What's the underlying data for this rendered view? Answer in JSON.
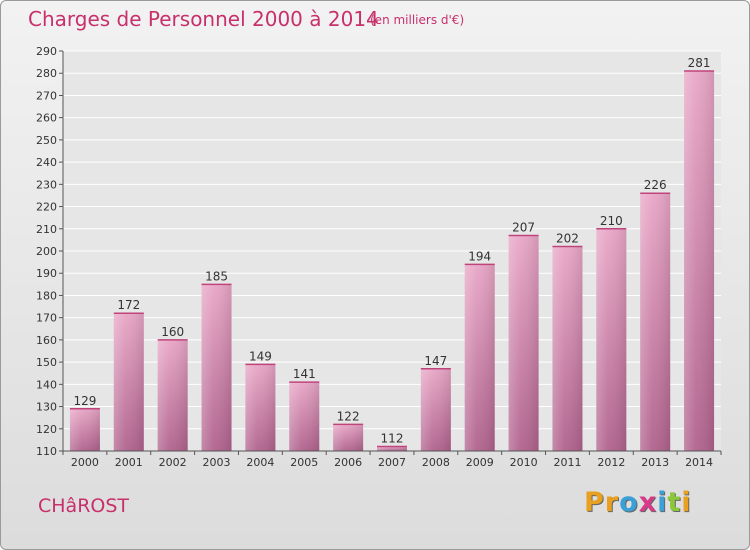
{
  "header": {
    "title": "Charges de Personnel 2000 à 2014",
    "unit": "(en milliers d'€)"
  },
  "footer": {
    "commune": "CHâROST",
    "logo_letters": [
      "P",
      "r",
      "o",
      "x",
      "i",
      "t",
      "i"
    ],
    "logo_colors": [
      "#e8a020",
      "#e8a020",
      "#3aa0d8",
      "#d83a8a",
      "#3aa0d8",
      "#8ac83a",
      "#e8a020"
    ]
  },
  "chart_data": {
    "type": "bar",
    "title": "Charges de Personnel 2000 à 2014",
    "subtitle": "(en milliers d'€)",
    "categories": [
      "2000",
      "2001",
      "2002",
      "2003",
      "2004",
      "2005",
      "2006",
      "2007",
      "2008",
      "2009",
      "2010",
      "2011",
      "2012",
      "2013",
      "2014"
    ],
    "values": [
      129,
      172,
      160,
      185,
      149,
      141,
      122,
      112,
      147,
      194,
      207,
      202,
      210,
      226,
      281
    ],
    "ylim": [
      110,
      290
    ],
    "yticks": [
      110,
      120,
      130,
      140,
      150,
      160,
      170,
      180,
      190,
      200,
      210,
      220,
      230,
      240,
      250,
      260,
      270,
      280,
      290
    ],
    "grid": true,
    "bar_color": "#d4799f"
  }
}
